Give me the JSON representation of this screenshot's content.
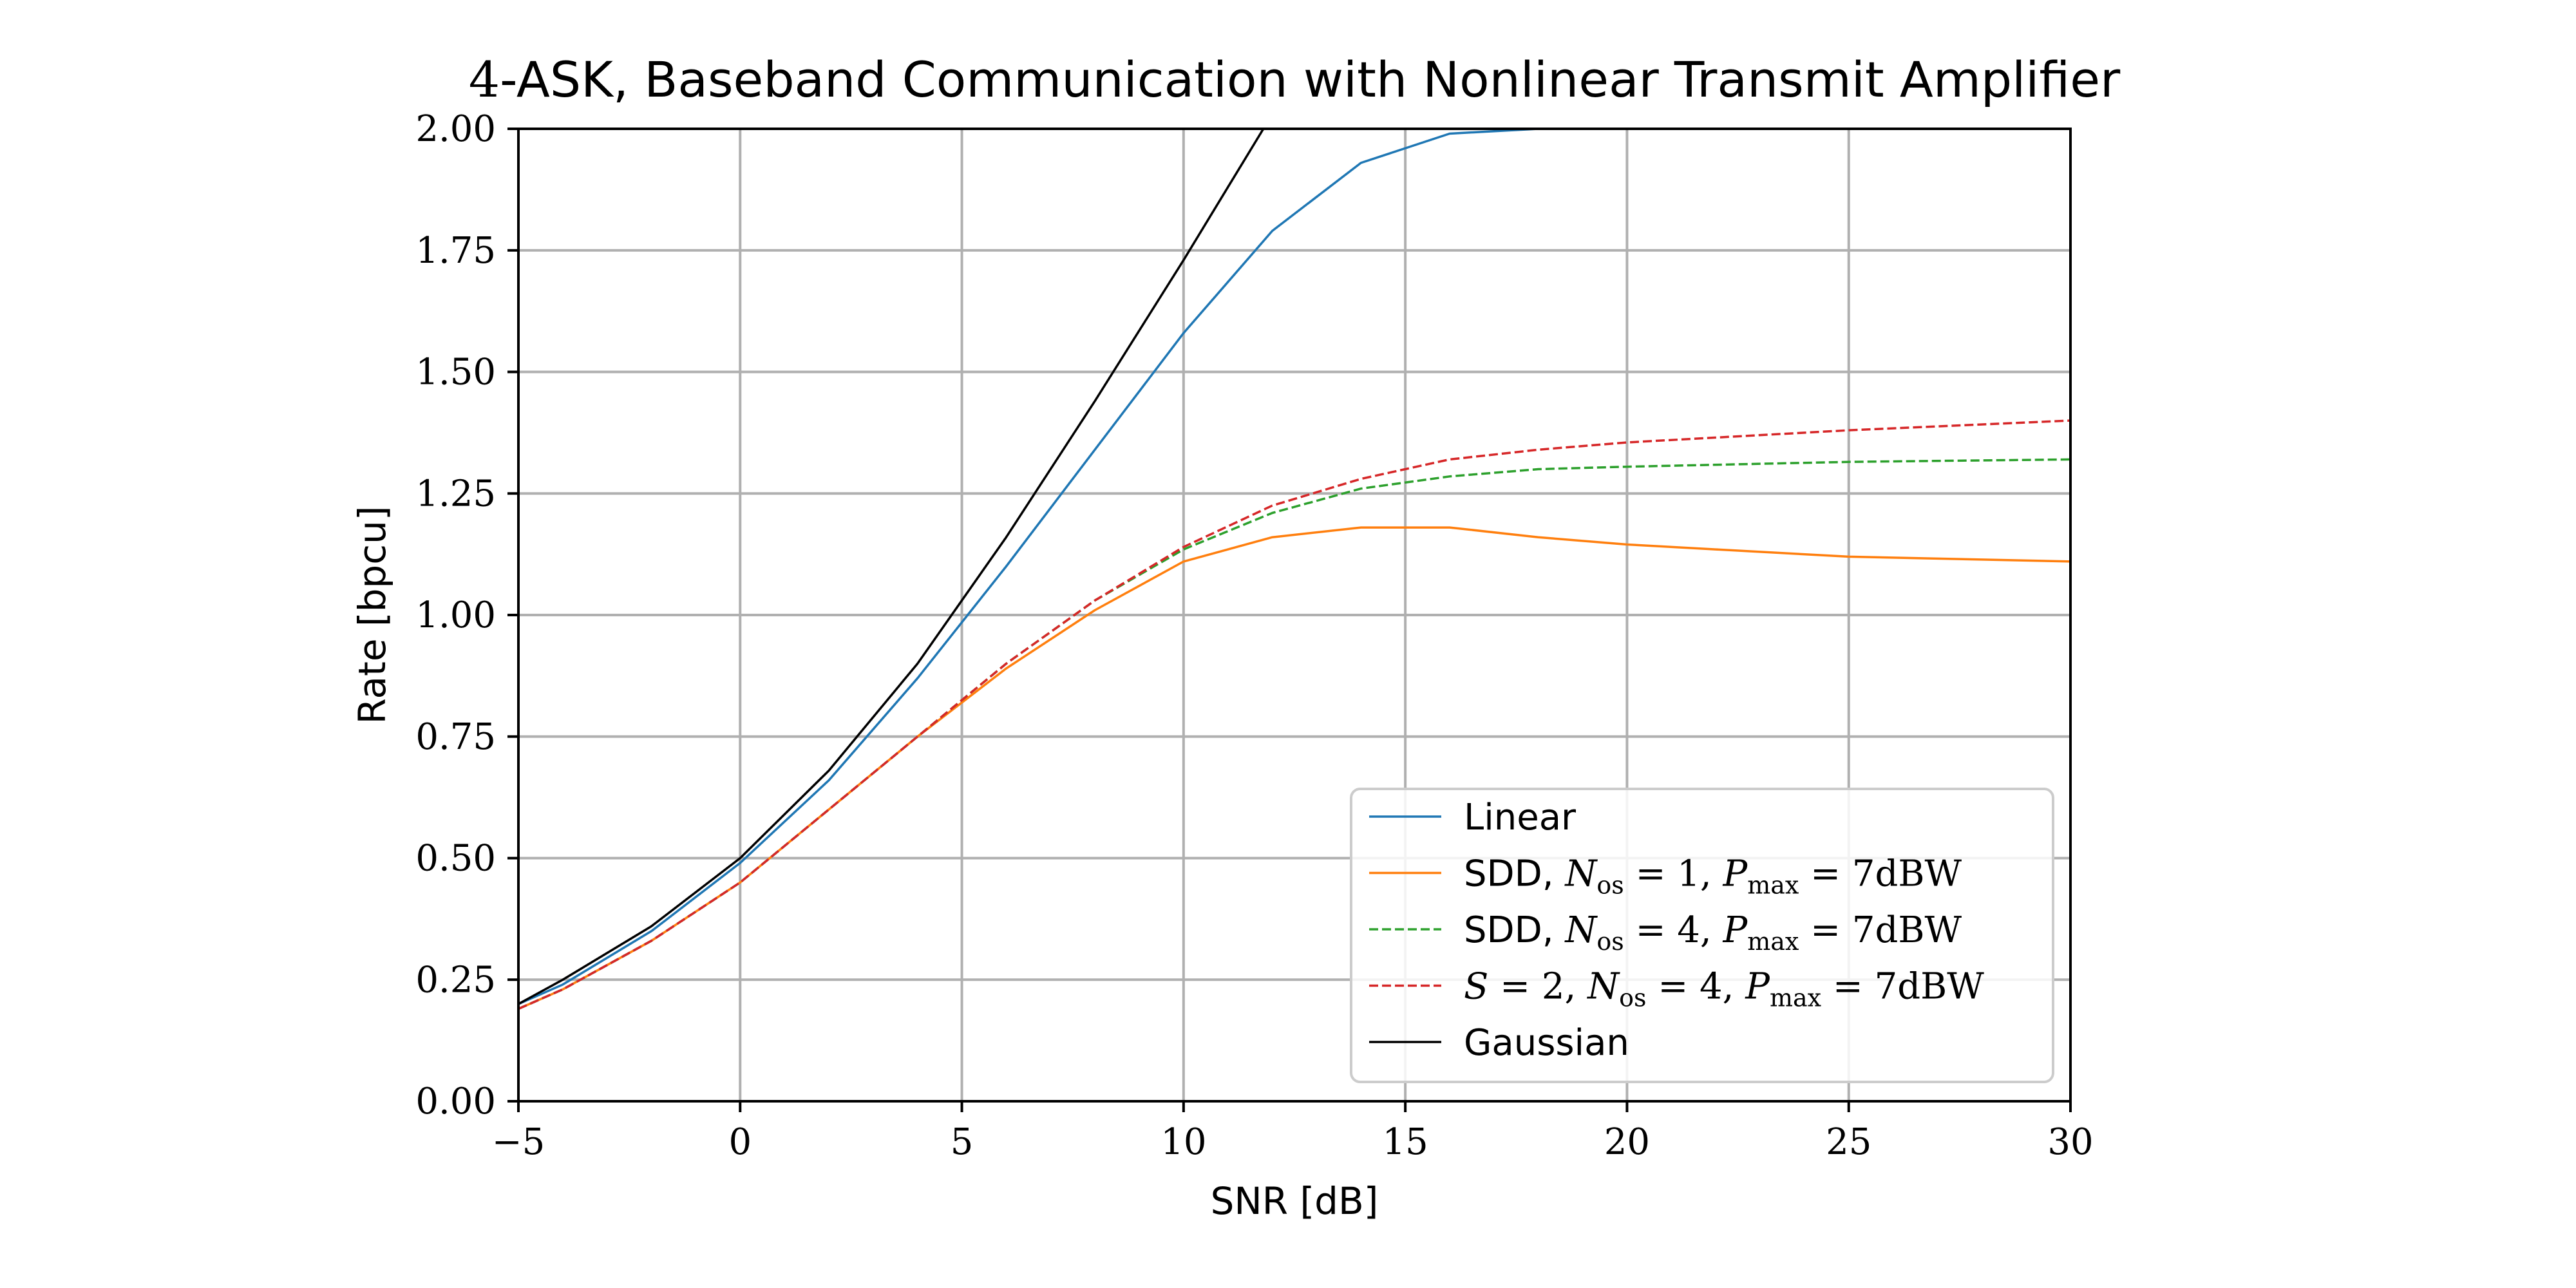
{
  "chart_data": {
    "type": "line",
    "title_prefix": "4",
    "title_rest": "-ASK, Baseband Communication with Nonlinear Transmit Amplifier",
    "xlabel": "SNR [dB]",
    "ylabel": "Rate [bpcu]",
    "xlim": [
      -5,
      30
    ],
    "ylim": [
      0,
      2
    ],
    "xticks": [
      -5,
      0,
      5,
      10,
      15,
      20,
      25,
      30
    ],
    "xtick_labels": [
      "−5",
      "0",
      "5",
      "10",
      "15",
      "20",
      "25",
      "30"
    ],
    "yticks": [
      0,
      0.25,
      0.5,
      0.75,
      1.0,
      1.25,
      1.5,
      1.75,
      2.0
    ],
    "ytick_labels": [
      "0.00",
      "0.25",
      "0.50",
      "0.75",
      "1.00",
      "1.25",
      "1.50",
      "1.75",
      "2.00"
    ],
    "grid": true,
    "legend_position": "lower-right",
    "series": [
      {
        "legend": {
          "pre": "Linear",
          "parts": []
        },
        "color": "#1f77b4",
        "dash": false,
        "x": [
          -5,
          -4,
          -2,
          0,
          2,
          4,
          6,
          8,
          10,
          12,
          14,
          16,
          18
        ],
        "y": [
          0.2,
          0.24,
          0.35,
          0.49,
          0.66,
          0.87,
          1.1,
          1.34,
          1.58,
          1.79,
          1.93,
          1.99,
          2.0
        ]
      },
      {
        "legend": {
          "pre": "SDD, ",
          "parts": [
            {
              "main": "N",
              "sub": "os",
              "rest": " = 1, "
            },
            {
              "main": "P",
              "sub": "max",
              "rest": " = 7dBW"
            }
          ]
        },
        "color": "#ff7f0e",
        "dash": false,
        "x": [
          -5,
          -4,
          -2,
          0,
          2,
          4,
          6,
          8,
          10,
          12,
          14,
          16,
          18,
          20,
          22,
          25,
          30
        ],
        "y": [
          0.19,
          0.23,
          0.33,
          0.45,
          0.6,
          0.75,
          0.89,
          1.01,
          1.11,
          1.16,
          1.18,
          1.18,
          1.16,
          1.145,
          1.135,
          1.12,
          1.11
        ]
      },
      {
        "legend": {
          "pre": "SDD, ",
          "parts": [
            {
              "main": "N",
              "sub": "os",
              "rest": " = 4, "
            },
            {
              "main": "P",
              "sub": "max",
              "rest": " = 7dBW"
            }
          ]
        },
        "color": "#2ca02c",
        "dash": true,
        "x": [
          -5,
          -4,
          -2,
          0,
          2,
          4,
          6,
          8,
          10,
          12,
          14,
          16,
          18,
          20,
          25,
          30
        ],
        "y": [
          0.19,
          0.23,
          0.33,
          0.45,
          0.6,
          0.75,
          0.9,
          1.03,
          1.135,
          1.21,
          1.26,
          1.285,
          1.3,
          1.305,
          1.315,
          1.32
        ]
      },
      {
        "legend": {
          "pre": "",
          "parts": [
            {
              "main": "S",
              "sub": "",
              "rest": " = 2, "
            },
            {
              "main": "N",
              "sub": "os",
              "rest": " = 4, "
            },
            {
              "main": "P",
              "sub": "max",
              "rest": " = 7dBW"
            }
          ]
        },
        "color": "#d62728",
        "dash": true,
        "x": [
          -5,
          -4,
          -2,
          0,
          2,
          4,
          6,
          8,
          10,
          12,
          14,
          16,
          18,
          20,
          25,
          30
        ],
        "y": [
          0.19,
          0.23,
          0.33,
          0.45,
          0.6,
          0.75,
          0.9,
          1.03,
          1.14,
          1.225,
          1.28,
          1.32,
          1.34,
          1.355,
          1.38,
          1.4
        ]
      },
      {
        "legend": {
          "pre": "Gaussian",
          "parts": []
        },
        "color": "#000000",
        "dash": false,
        "x": [
          -5,
          -4,
          -2,
          0,
          2,
          4,
          6,
          8,
          10,
          11.8
        ],
        "y": [
          0.2,
          0.25,
          0.36,
          0.5,
          0.68,
          0.9,
          1.16,
          1.44,
          1.73,
          2.0
        ]
      }
    ]
  }
}
